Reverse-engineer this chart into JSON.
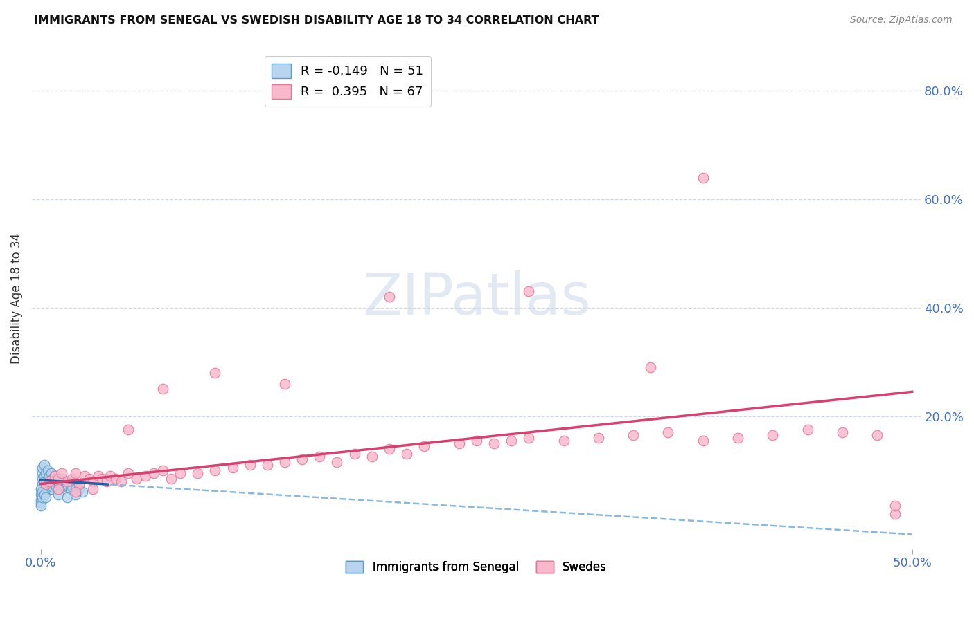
{
  "title": "IMMIGRANTS FROM SENEGAL VS SWEDISH DISABILITY AGE 18 TO 34 CORRELATION CHART",
  "source": "Source: ZipAtlas.com",
  "ylabel": "Disability Age 18 to 34",
  "xlim": [
    -0.005,
    0.505
  ],
  "ylim": [
    -0.045,
    0.88
  ],
  "ytick_vals": [
    0.0,
    0.2,
    0.4,
    0.6,
    0.8
  ],
  "ytick_labels": [
    "",
    "20.0%",
    "40.0%",
    "60.0%",
    "80.0%"
  ],
  "xtick_vals": [
    0.0,
    0.5
  ],
  "xtick_labels": [
    "0.0%",
    "50.0%"
  ],
  "legend1": "R = -0.149   N = 51",
  "legend2": "R =  0.395   N = 67",
  "blue_face": "#b8d4ee",
  "blue_edge": "#5a9dc8",
  "pink_face": "#f9b8cc",
  "pink_edge": "#e07898",
  "blue_line_solid": "#2060a8",
  "blue_line_dash": "#88b8e0",
  "pink_line": "#d84070",
  "watermark": "ZIPatlas",
  "background": "#ffffff",
  "grid_color": "#d0d8e8",
  "title_color": "#111111",
  "source_color": "#888888",
  "axis_label_color": "#333333",
  "tick_color": "#4472C4",
  "senegal_x": [
    0.001,
    0.001,
    0.001,
    0.001,
    0.002,
    0.002,
    0.002,
    0.002,
    0.003,
    0.003,
    0.003,
    0.004,
    0.004,
    0.004,
    0.005,
    0.005,
    0.006,
    0.006,
    0.006,
    0.007,
    0.007,
    0.008,
    0.008,
    0.009,
    0.009,
    0.01,
    0.01,
    0.011,
    0.012,
    0.012,
    0.013,
    0.014,
    0.015,
    0.016,
    0.017,
    0.018,
    0.02,
    0.022,
    0.024,
    0.0,
    0.0,
    0.0,
    0.0,
    0.0,
    0.001,
    0.001,
    0.002,
    0.003,
    0.01,
    0.015,
    0.02
  ],
  "senegal_y": [
    0.095,
    0.105,
    0.085,
    0.075,
    0.11,
    0.09,
    0.08,
    0.07,
    0.095,
    0.075,
    0.065,
    0.1,
    0.085,
    0.07,
    0.09,
    0.075,
    0.095,
    0.08,
    0.065,
    0.085,
    0.07,
    0.09,
    0.075,
    0.085,
    0.07,
    0.08,
    0.065,
    0.075,
    0.085,
    0.07,
    0.075,
    0.08,
    0.075,
    0.07,
    0.065,
    0.07,
    0.065,
    0.065,
    0.06,
    0.065,
    0.055,
    0.045,
    0.04,
    0.035,
    0.06,
    0.05,
    0.055,
    0.05,
    0.055,
    0.05,
    0.055
  ],
  "swedes_x": [
    0.003,
    0.005,
    0.008,
    0.01,
    0.012,
    0.015,
    0.018,
    0.02,
    0.022,
    0.025,
    0.028,
    0.03,
    0.033,
    0.035,
    0.038,
    0.04,
    0.043,
    0.046,
    0.05,
    0.055,
    0.06,
    0.065,
    0.07,
    0.075,
    0.08,
    0.09,
    0.1,
    0.11,
    0.12,
    0.13,
    0.14,
    0.15,
    0.16,
    0.17,
    0.18,
    0.19,
    0.2,
    0.21,
    0.22,
    0.24,
    0.25,
    0.26,
    0.27,
    0.28,
    0.3,
    0.32,
    0.34,
    0.36,
    0.38,
    0.4,
    0.42,
    0.44,
    0.46,
    0.48,
    0.49,
    0.01,
    0.02,
    0.03,
    0.05,
    0.07,
    0.1,
    0.14,
    0.2,
    0.28,
    0.35,
    0.38,
    0.49
  ],
  "swedes_y": [
    0.075,
    0.08,
    0.09,
    0.085,
    0.095,
    0.08,
    0.085,
    0.095,
    0.075,
    0.09,
    0.085,
    0.08,
    0.09,
    0.085,
    0.08,
    0.09,
    0.085,
    0.08,
    0.095,
    0.085,
    0.09,
    0.095,
    0.1,
    0.085,
    0.095,
    0.095,
    0.1,
    0.105,
    0.11,
    0.11,
    0.115,
    0.12,
    0.125,
    0.115,
    0.13,
    0.125,
    0.14,
    0.13,
    0.145,
    0.15,
    0.155,
    0.15,
    0.155,
    0.16,
    0.155,
    0.16,
    0.165,
    0.17,
    0.155,
    0.16,
    0.165,
    0.175,
    0.17,
    0.165,
    0.02,
    0.065,
    0.06,
    0.065,
    0.175,
    0.25,
    0.28,
    0.26,
    0.42,
    0.43,
    0.29,
    0.64,
    0.035
  ]
}
